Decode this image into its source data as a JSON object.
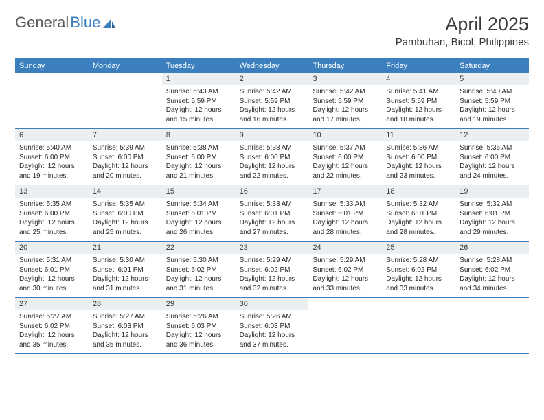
{
  "logo": {
    "text1": "General",
    "text2": "Blue"
  },
  "title": "April 2025",
  "location": "Pambuhan, Bicol, Philippines",
  "colors": {
    "header_bar": "#3b7fbf",
    "daynum_bg": "#eceff1",
    "text": "#3a3a3a",
    "logo_gray": "#5a5a5a",
    "logo_blue": "#3b7fbf",
    "border": "#3b7fbf",
    "background": "#ffffff"
  },
  "typography": {
    "title_fontsize": 27,
    "location_fontsize": 15,
    "weekday_fontsize": 11,
    "daynum_fontsize": 11,
    "content_fontsize": 10
  },
  "weekdays": [
    "Sunday",
    "Monday",
    "Tuesday",
    "Wednesday",
    "Thursday",
    "Friday",
    "Saturday"
  ],
  "weeks": [
    [
      null,
      null,
      {
        "n": "1",
        "sr": "Sunrise: 5:43 AM",
        "ss": "Sunset: 5:59 PM",
        "d1": "Daylight: 12 hours",
        "d2": "and 15 minutes."
      },
      {
        "n": "2",
        "sr": "Sunrise: 5:42 AM",
        "ss": "Sunset: 5:59 PM",
        "d1": "Daylight: 12 hours",
        "d2": "and 16 minutes."
      },
      {
        "n": "3",
        "sr": "Sunrise: 5:42 AM",
        "ss": "Sunset: 5:59 PM",
        "d1": "Daylight: 12 hours",
        "d2": "and 17 minutes."
      },
      {
        "n": "4",
        "sr": "Sunrise: 5:41 AM",
        "ss": "Sunset: 5:59 PM",
        "d1": "Daylight: 12 hours",
        "d2": "and 18 minutes."
      },
      {
        "n": "5",
        "sr": "Sunrise: 5:40 AM",
        "ss": "Sunset: 5:59 PM",
        "d1": "Daylight: 12 hours",
        "d2": "and 19 minutes."
      }
    ],
    [
      {
        "n": "6",
        "sr": "Sunrise: 5:40 AM",
        "ss": "Sunset: 6:00 PM",
        "d1": "Daylight: 12 hours",
        "d2": "and 19 minutes."
      },
      {
        "n": "7",
        "sr": "Sunrise: 5:39 AM",
        "ss": "Sunset: 6:00 PM",
        "d1": "Daylight: 12 hours",
        "d2": "and 20 minutes."
      },
      {
        "n": "8",
        "sr": "Sunrise: 5:38 AM",
        "ss": "Sunset: 6:00 PM",
        "d1": "Daylight: 12 hours",
        "d2": "and 21 minutes."
      },
      {
        "n": "9",
        "sr": "Sunrise: 5:38 AM",
        "ss": "Sunset: 6:00 PM",
        "d1": "Daylight: 12 hours",
        "d2": "and 22 minutes."
      },
      {
        "n": "10",
        "sr": "Sunrise: 5:37 AM",
        "ss": "Sunset: 6:00 PM",
        "d1": "Daylight: 12 hours",
        "d2": "and 22 minutes."
      },
      {
        "n": "11",
        "sr": "Sunrise: 5:36 AM",
        "ss": "Sunset: 6:00 PM",
        "d1": "Daylight: 12 hours",
        "d2": "and 23 minutes."
      },
      {
        "n": "12",
        "sr": "Sunrise: 5:36 AM",
        "ss": "Sunset: 6:00 PM",
        "d1": "Daylight: 12 hours",
        "d2": "and 24 minutes."
      }
    ],
    [
      {
        "n": "13",
        "sr": "Sunrise: 5:35 AM",
        "ss": "Sunset: 6:00 PM",
        "d1": "Daylight: 12 hours",
        "d2": "and 25 minutes."
      },
      {
        "n": "14",
        "sr": "Sunrise: 5:35 AM",
        "ss": "Sunset: 6:00 PM",
        "d1": "Daylight: 12 hours",
        "d2": "and 25 minutes."
      },
      {
        "n": "15",
        "sr": "Sunrise: 5:34 AM",
        "ss": "Sunset: 6:01 PM",
        "d1": "Daylight: 12 hours",
        "d2": "and 26 minutes."
      },
      {
        "n": "16",
        "sr": "Sunrise: 5:33 AM",
        "ss": "Sunset: 6:01 PM",
        "d1": "Daylight: 12 hours",
        "d2": "and 27 minutes."
      },
      {
        "n": "17",
        "sr": "Sunrise: 5:33 AM",
        "ss": "Sunset: 6:01 PM",
        "d1": "Daylight: 12 hours",
        "d2": "and 28 minutes."
      },
      {
        "n": "18",
        "sr": "Sunrise: 5:32 AM",
        "ss": "Sunset: 6:01 PM",
        "d1": "Daylight: 12 hours",
        "d2": "and 28 minutes."
      },
      {
        "n": "19",
        "sr": "Sunrise: 5:32 AM",
        "ss": "Sunset: 6:01 PM",
        "d1": "Daylight: 12 hours",
        "d2": "and 29 minutes."
      }
    ],
    [
      {
        "n": "20",
        "sr": "Sunrise: 5:31 AM",
        "ss": "Sunset: 6:01 PM",
        "d1": "Daylight: 12 hours",
        "d2": "and 30 minutes."
      },
      {
        "n": "21",
        "sr": "Sunrise: 5:30 AM",
        "ss": "Sunset: 6:01 PM",
        "d1": "Daylight: 12 hours",
        "d2": "and 31 minutes."
      },
      {
        "n": "22",
        "sr": "Sunrise: 5:30 AM",
        "ss": "Sunset: 6:02 PM",
        "d1": "Daylight: 12 hours",
        "d2": "and 31 minutes."
      },
      {
        "n": "23",
        "sr": "Sunrise: 5:29 AM",
        "ss": "Sunset: 6:02 PM",
        "d1": "Daylight: 12 hours",
        "d2": "and 32 minutes."
      },
      {
        "n": "24",
        "sr": "Sunrise: 5:29 AM",
        "ss": "Sunset: 6:02 PM",
        "d1": "Daylight: 12 hours",
        "d2": "and 33 minutes."
      },
      {
        "n": "25",
        "sr": "Sunrise: 5:28 AM",
        "ss": "Sunset: 6:02 PM",
        "d1": "Daylight: 12 hours",
        "d2": "and 33 minutes."
      },
      {
        "n": "26",
        "sr": "Sunrise: 5:28 AM",
        "ss": "Sunset: 6:02 PM",
        "d1": "Daylight: 12 hours",
        "d2": "and 34 minutes."
      }
    ],
    [
      {
        "n": "27",
        "sr": "Sunrise: 5:27 AM",
        "ss": "Sunset: 6:02 PM",
        "d1": "Daylight: 12 hours",
        "d2": "and 35 minutes."
      },
      {
        "n": "28",
        "sr": "Sunrise: 5:27 AM",
        "ss": "Sunset: 6:03 PM",
        "d1": "Daylight: 12 hours",
        "d2": "and 35 minutes."
      },
      {
        "n": "29",
        "sr": "Sunrise: 5:26 AM",
        "ss": "Sunset: 6:03 PM",
        "d1": "Daylight: 12 hours",
        "d2": "and 36 minutes."
      },
      {
        "n": "30",
        "sr": "Sunrise: 5:26 AM",
        "ss": "Sunset: 6:03 PM",
        "d1": "Daylight: 12 hours",
        "d2": "and 37 minutes."
      },
      null,
      null,
      null
    ]
  ]
}
